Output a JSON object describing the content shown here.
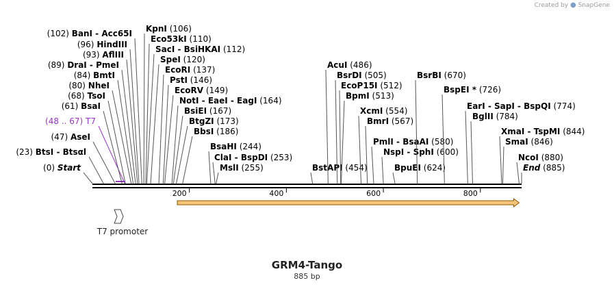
{
  "branding": {
    "created_by": "Created by",
    "product": "SnapGene"
  },
  "construct": {
    "name": "GRM4-Tango",
    "length_label": "885 bp",
    "length": 885
  },
  "scale": {
    "ticks": [
      200,
      400,
      600,
      800
    ]
  },
  "colors": {
    "t7_primer": "#9933cc",
    "orf_fill": "#f5c37a",
    "orf_stroke": "#8a5a00",
    "backbone": "#000000",
    "leader": "#555555"
  },
  "features": {
    "t7_promoter": {
      "label": "T7 promoter",
      "start": 48,
      "end": 67
    },
    "orf": {
      "start": 175,
      "end": 880
    }
  },
  "sites": [
    {
      "id": "start",
      "pos": "(0)",
      "name": "Start",
      "site": 0,
      "italic": true
    },
    {
      "id": "btsi",
      "pos": "(23)",
      "name": "BtsI  -  Btsαl",
      "site": 23
    },
    {
      "id": "asei",
      "pos": "(47)",
      "name": "AseI",
      "site": 47
    },
    {
      "id": "t7",
      "pos": "(48 .. 67)",
      "name": "T7",
      "site": 67,
      "primer": true
    },
    {
      "id": "bsai",
      "pos": "(61)",
      "name": "BsaI",
      "site": 61
    },
    {
      "id": "tsoi",
      "pos": "(68)",
      "name": "TsoI",
      "site": 68
    },
    {
      "id": "nhei",
      "pos": "(80)",
      "name": "NheI",
      "site": 80
    },
    {
      "id": "bmti",
      "pos": "(84)",
      "name": "BmtI",
      "site": 84
    },
    {
      "id": "drai",
      "pos": "(89)",
      "name": "DraI  -  PmeI",
      "site": 89
    },
    {
      "id": "aflii",
      "pos": "(93)",
      "name": "AflIII",
      "site": 93
    },
    {
      "id": "hindiii",
      "pos": "(96)",
      "name": "HindIII",
      "site": 96
    },
    {
      "id": "bani",
      "pos": "(102)",
      "name": "BanI  -  Acc65I",
      "site": 102
    },
    {
      "id": "kpni",
      "pos": "(106)",
      "name": "KpnI",
      "site": 106
    },
    {
      "id": "eco53ki",
      "pos": "(110)",
      "name": "Eco53kI",
      "site": 110
    },
    {
      "id": "saci",
      "pos": "(112)",
      "name": "SacI  -  BsiHKAI",
      "site": 112
    },
    {
      "id": "spei",
      "pos": "(120)",
      "name": "SpeI",
      "site": 120
    },
    {
      "id": "ecori",
      "pos": "(137)",
      "name": "EcoRI",
      "site": 137
    },
    {
      "id": "psti",
      "pos": "(146)",
      "name": "PstI",
      "site": 146
    },
    {
      "id": "ecorv",
      "pos": "(149)",
      "name": "EcoRV",
      "site": 149
    },
    {
      "id": "noti",
      "pos": "(164)",
      "name": "NotI  -  EaeI  -  EagI",
      "site": 164
    },
    {
      "id": "bsiei",
      "pos": "(167)",
      "name": "BsiEI",
      "site": 167
    },
    {
      "id": "btgzi",
      "pos": "(173)",
      "name": "BtgZI",
      "site": 173
    },
    {
      "id": "bbsi",
      "pos": "(186)",
      "name": "BbsI",
      "site": 186
    },
    {
      "id": "bsahi",
      "pos": "(244)",
      "name": "BsaHI",
      "site": 244
    },
    {
      "id": "clai",
      "pos": "(253)",
      "name": "ClaI  -  BspDI",
      "site": 253
    },
    {
      "id": "msli",
      "pos": "(255)",
      "name": "MslI",
      "site": 255
    },
    {
      "id": "bstapi",
      "pos": "(454)",
      "name": "BstAPI",
      "site": 454
    },
    {
      "id": "acui",
      "pos": "(486)",
      "name": "AcuI",
      "site": 486
    },
    {
      "id": "bsrdi",
      "pos": "(505)",
      "name": "BsrDI",
      "site": 505
    },
    {
      "id": "ecop15i",
      "pos": "(512)",
      "name": "EcoP15I",
      "site": 512
    },
    {
      "id": "bpmi",
      "pos": "(513)",
      "name": "BpmI",
      "site": 513
    },
    {
      "id": "xcmi",
      "pos": "(554)",
      "name": "XcmI",
      "site": 554
    },
    {
      "id": "bmri",
      "pos": "(567)",
      "name": "BmrI",
      "site": 567
    },
    {
      "id": "pmli",
      "pos": "(580)",
      "name": "PmlI  -  BsaAI",
      "site": 580
    },
    {
      "id": "nspi",
      "pos": "(600)",
      "name": "NspI  -  SphI",
      "site": 600
    },
    {
      "id": "bpuei",
      "pos": "(624)",
      "name": "BpuEI",
      "site": 624
    },
    {
      "id": "bsrbi",
      "pos": "(670)",
      "name": "BsrBI",
      "site": 670
    },
    {
      "id": "bspei",
      "pos": "(726)",
      "name": "BspEI *",
      "site": 726
    },
    {
      "id": "eari",
      "pos": "(774)",
      "name": "EarI  -  SapI  -  BspQI",
      "site": 774
    },
    {
      "id": "bglii",
      "pos": "(784)",
      "name": "BglII",
      "site": 784
    },
    {
      "id": "xmai",
      "pos": "(844)",
      "name": "XmaI  -  TspMI",
      "site": 844
    },
    {
      "id": "smai",
      "pos": "(846)",
      "name": "SmaI",
      "site": 846
    },
    {
      "id": "ncoi",
      "pos": "(880)",
      "name": "NcoI",
      "site": 880
    },
    {
      "id": "end",
      "pos": "(885)",
      "name": "End",
      "site": 885,
      "italic": true
    }
  ]
}
